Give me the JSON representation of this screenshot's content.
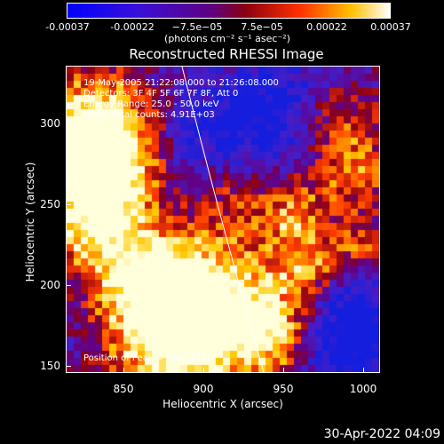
{
  "colorbar": {
    "ticks": [
      "-0.00037",
      "-0.00022",
      "−7.5e−05",
      "7.5e−05",
      "0.00022",
      "0.00037"
    ],
    "unit": "(photons cm⁻² s⁻¹ asec⁻²)",
    "colors": [
      "#0000ff",
      "#4a00c8",
      "#7a00a0",
      "#b00000",
      "#ff6000",
      "#ffff80",
      "#ffffff"
    ]
  },
  "plot": {
    "title": "Reconstructed RHESSI Image",
    "info_lines": [
      "19-May-2005 21:22:08.000 to 21:26:08.000",
      "Detectors: 3F 4F 5F 6F 7F 8F, Att 0",
      "Energy Range: 25.0 - 50.0 keV",
      "Clean    Total counts: 4.91E+03"
    ],
    "peak_label": "Position of Peak = [842,272]",
    "xlabel": "Heliocentric X (arcsec)",
    "ylabel": "Heliocentric Y (arcsec)",
    "xticks": [
      "850",
      "900",
      "950",
      "1000"
    ],
    "yticks": [
      "300",
      "250",
      "200",
      "150"
    ]
  },
  "footer": {
    "timestamp": "30-Apr-2022 04:09"
  }
}
